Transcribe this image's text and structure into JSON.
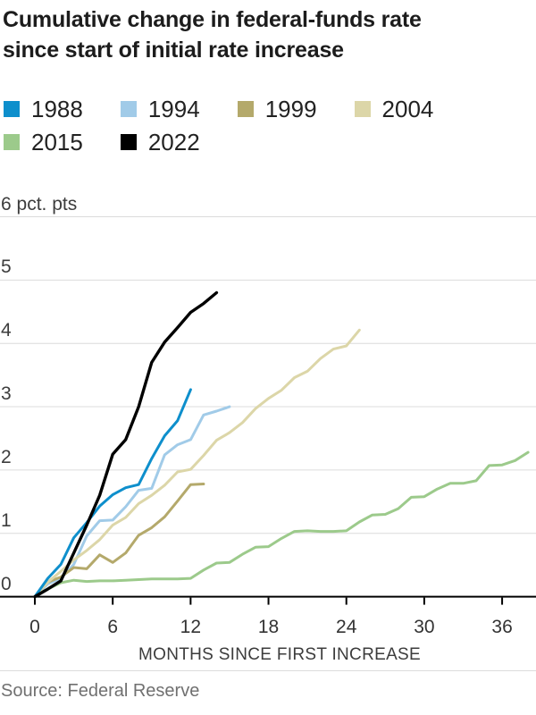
{
  "title": {
    "line1": "Cumulative change in federal-funds rate",
    "line2": "since start of initial rate increase"
  },
  "source": "Source: Federal Reserve",
  "colors": {
    "s1988": "#0e8fcc",
    "s1994": "#a1cbe8",
    "s1999": "#b4a96b",
    "s2004": "#dcd6a8",
    "s2015": "#9cca8b",
    "s2022": "#000000",
    "gridline": "#dcdcdc",
    "axis": "#000000"
  },
  "legend": {
    "rows": [
      [
        {
          "label": "1988",
          "color": "#0e8fcc"
        },
        {
          "label": "1994",
          "color": "#a1cbe8"
        },
        {
          "label": "1999",
          "color": "#b4a96b"
        },
        {
          "label": "2004",
          "color": "#dcd6a8"
        }
      ],
      [
        {
          "label": "2015",
          "color": "#9cca8b"
        },
        {
          "label": "2022",
          "color": "#000000"
        }
      ]
    ]
  },
  "chart_data": {
    "type": "line",
    "title": "Cumulative change in federal-funds rate since start of initial rate increase",
    "xlabel": "MONTHS SINCE FIRST INCREASE",
    "ylabel": "pct. pts",
    "y_top_label": "6 pct. pts",
    "x_ticks": [
      0,
      6,
      12,
      18,
      24,
      30,
      36
    ],
    "y_ticks": [
      0,
      1,
      2,
      3,
      4,
      5
    ],
    "xlim": [
      0,
      38.6
    ],
    "ylim": [
      0,
      6
    ],
    "grid": "horizontal",
    "legend_position": "top",
    "x_unit": "months since first increase (index = month)",
    "series": [
      {
        "name": "1988",
        "color": "#0e8fcc",
        "values": [
          0,
          0.29,
          0.51,
          0.93,
          1.17,
          1.43,
          1.61,
          1.72,
          1.77,
          2.18,
          2.54,
          2.78,
          3.27
        ]
      },
      {
        "name": "1994",
        "color": "#a1cbe8",
        "values": [
          0,
          0.2,
          0.29,
          0.51,
          0.96,
          1.2,
          1.21,
          1.42,
          1.68,
          1.71,
          2.24,
          2.4,
          2.48,
          2.87,
          2.93,
          3.0
        ]
      },
      {
        "name": "1999",
        "color": "#b4a96b",
        "values": [
          0,
          0.23,
          0.31,
          0.46,
          0.44,
          0.66,
          0.54,
          0.69,
          0.97,
          1.09,
          1.26,
          1.51,
          1.77,
          1.78
        ]
      },
      {
        "name": "2004",
        "color": "#dcd6a8",
        "values": [
          0,
          0.23,
          0.4,
          0.58,
          0.73,
          0.9,
          1.13,
          1.25,
          1.47,
          1.6,
          1.76,
          1.97,
          2.01,
          2.23,
          2.47,
          2.59,
          2.75,
          2.97,
          3.13,
          3.26,
          3.46,
          3.56,
          3.76,
          3.91,
          3.96,
          4.21
        ]
      },
      {
        "name": "2015",
        "color": "#9cca8b",
        "values": [
          0,
          0.12,
          0.22,
          0.26,
          0.24,
          0.25,
          0.25,
          0.26,
          0.27,
          0.28,
          0.28,
          0.28,
          0.29,
          0.42,
          0.53,
          0.54,
          0.67,
          0.78,
          0.79,
          0.92,
          1.03,
          1.04,
          1.03,
          1.03,
          1.04,
          1.18,
          1.29,
          1.3,
          1.39,
          1.57,
          1.58,
          1.7,
          1.79,
          1.79,
          1.83,
          2.07,
          2.08,
          2.15,
          2.28
        ]
      },
      {
        "name": "2022",
        "color": "#000000",
        "values": [
          0,
          0.12,
          0.25,
          0.69,
          1.13,
          1.6,
          2.25,
          2.48,
          3.0,
          3.7,
          4.02,
          4.25,
          4.49,
          4.63,
          4.8
        ]
      }
    ]
  }
}
